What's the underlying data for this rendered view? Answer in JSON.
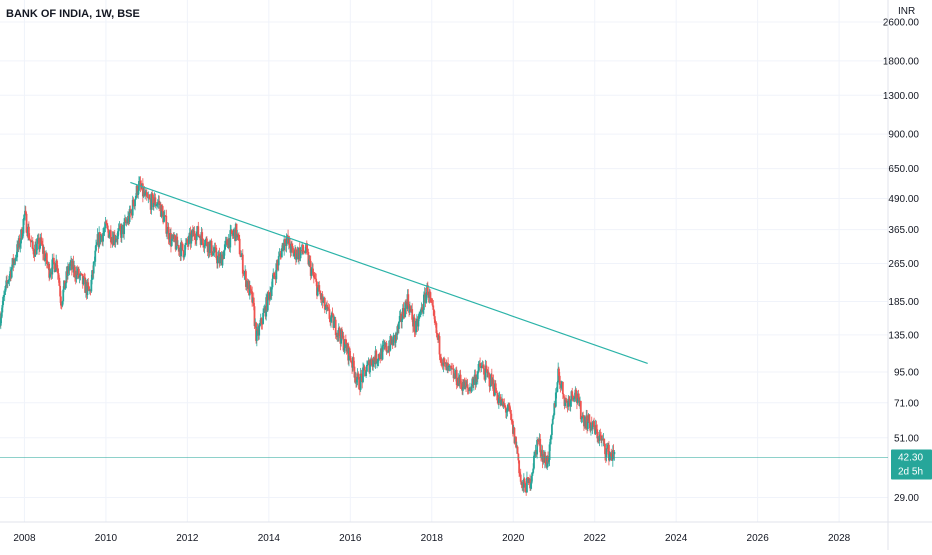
{
  "header": {
    "title": "BANK OF INDIA, 1W, BSE",
    "currency": "INR"
  },
  "colors": {
    "up": "#26a69a",
    "down": "#ef5350",
    "trendline": "#2bb3a8",
    "price_line": "#26a69a",
    "grid": "#f0f3fa",
    "axis_text": "#131722"
  },
  "price_tag": {
    "price": "42.30",
    "countdown": "2d 5h"
  },
  "chart_data": {
    "type": "candlestick",
    "title": "BANK OF INDIA, 1W, BSE",
    "y_unit": "INR",
    "y_scale": "log",
    "y_ticks": [
      "2600.00",
      "1800.00",
      "1300.00",
      "900.00",
      "650.00",
      "490.00",
      "365.00",
      "265.00",
      "185.00",
      "135.00",
      "95.00",
      "71.00",
      "51.00",
      "29.00"
    ],
    "x_ticks": [
      "2008",
      "2010",
      "2012",
      "2014",
      "2016",
      "2018",
      "2020",
      "2022",
      "2024",
      "2026",
      "2028"
    ],
    "x_range": [
      2007.4,
      2029.2
    ],
    "y_range": [
      23,
      3200
    ],
    "grid": true,
    "last_price": 42.3,
    "price_path": [
      [
        2007.4,
        160
      ],
      [
        2007.6,
        230
      ],
      [
        2007.9,
        330
      ],
      [
        2008.0,
        420
      ],
      [
        2008.2,
        300
      ],
      [
        2008.4,
        320
      ],
      [
        2008.6,
        250
      ],
      [
        2008.8,
        270
      ],
      [
        2008.9,
        185
      ],
      [
        2009.1,
        260
      ],
      [
        2009.3,
        240
      ],
      [
        2009.6,
        200
      ],
      [
        2009.8,
        330
      ],
      [
        2010.0,
        370
      ],
      [
        2010.2,
        340
      ],
      [
        2010.4,
        360
      ],
      [
        2010.6,
        420
      ],
      [
        2010.8,
        560
      ],
      [
        2011.0,
        480
      ],
      [
        2011.3,
        470
      ],
      [
        2011.6,
        330
      ],
      [
        2011.9,
        300
      ],
      [
        2012.2,
        360
      ],
      [
        2012.5,
        320
      ],
      [
        2012.8,
        270
      ],
      [
        2013.0,
        330
      ],
      [
        2013.2,
        360
      ],
      [
        2013.4,
        240
      ],
      [
        2013.6,
        185
      ],
      [
        2013.7,
        130
      ],
      [
        2013.9,
        170
      ],
      [
        2014.2,
        260
      ],
      [
        2014.4,
        340
      ],
      [
        2014.6,
        290
      ],
      [
        2014.9,
        300
      ],
      [
        2015.1,
        230
      ],
      [
        2015.4,
        170
      ],
      [
        2015.7,
        140
      ],
      [
        2016.0,
        110
      ],
      [
        2016.2,
        85
      ],
      [
        2016.5,
        105
      ],
      [
        2016.8,
        115
      ],
      [
        2017.1,
        130
      ],
      [
        2017.4,
        190
      ],
      [
        2017.6,
        140
      ],
      [
        2017.9,
        210
      ],
      [
        2018.1,
        140
      ],
      [
        2018.3,
        100
      ],
      [
        2018.6,
        90
      ],
      [
        2018.9,
        80
      ],
      [
        2019.2,
        100
      ],
      [
        2019.5,
        85
      ],
      [
        2019.7,
        70
      ],
      [
        2019.9,
        65
      ],
      [
        2020.1,
        45
      ],
      [
        2020.2,
        32
      ],
      [
        2020.4,
        33
      ],
      [
        2020.6,
        50
      ],
      [
        2020.8,
        40
      ],
      [
        2020.9,
        45
      ],
      [
        2021.1,
        95
      ],
      [
        2021.3,
        70
      ],
      [
        2021.5,
        80
      ],
      [
        2021.7,
        62
      ],
      [
        2021.9,
        58
      ],
      [
        2022.1,
        52
      ],
      [
        2022.3,
        45
      ],
      [
        2022.5,
        42.3
      ]
    ],
    "trendline": {
      "x1": 2010.6,
      "y1": 570,
      "x2": 2023.3,
      "y2": 103
    }
  }
}
